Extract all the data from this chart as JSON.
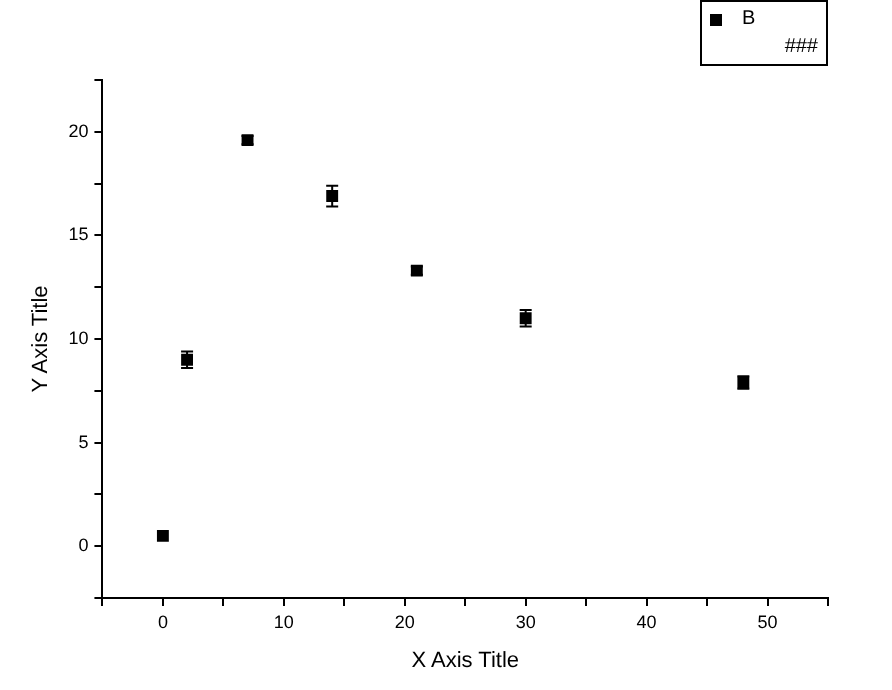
{
  "chart_data": {
    "type": "scatter",
    "xlabel": "X Axis Title",
    "ylabel": "Y Axis Title",
    "annotations": [
      "###"
    ],
    "series": [
      {
        "name": "B",
        "color": "#000000",
        "x": [
          0,
          2,
          7,
          14,
          21,
          30,
          48
        ],
        "values": [
          0.5,
          9.0,
          19.6,
          16.9,
          13.3,
          11.0,
          7.9
        ],
        "errors": [
          null,
          0.4,
          0.2,
          0.5,
          0.2,
          0.4,
          0.3
        ]
      }
    ],
    "xlim": [
      -5,
      55
    ],
    "xticks": [
      {
        "value": -5,
        "label": null
      },
      0,
      {
        "value": 5,
        "label": null
      },
      10,
      {
        "value": 15,
        "label": null
      },
      20,
      {
        "value": 25,
        "label": null
      },
      30,
      {
        "value": 35,
        "label": null
      },
      40,
      {
        "value": 45,
        "label": null
      },
      50,
      {
        "value": 55,
        "label": null
      }
    ],
    "ylim": [
      -2.5,
      22.5
    ],
    "yticks": [
      {
        "value": -2.5,
        "label": null
      },
      0,
      {
        "value": 2.5,
        "label": null
      },
      5,
      {
        "value": 7.5,
        "label": null
      },
      10,
      {
        "value": 12.5,
        "label": null
      },
      15,
      {
        "value": 17.5,
        "label": null
      },
      20,
      {
        "value": 22.5,
        "label": null
      }
    ],
    "grid": false,
    "legend": "top right",
    "marker": "square"
  }
}
